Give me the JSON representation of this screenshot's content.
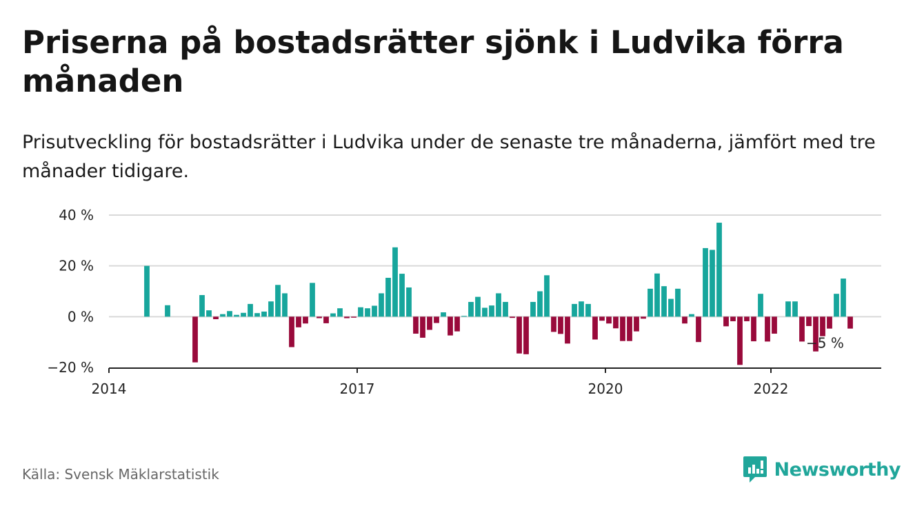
{
  "title": "Priserna på bostadsrätter sjönk i Ludvika förra månaden",
  "subtitle": "Prisutveckling för bostadsrätter i Ludvika under de senaste tre månaderna, jämfört med tre månader tidigare.",
  "source": "Källa: Svensk Mäklarstatistik",
  "brand": {
    "name": "Newsworthy",
    "logo_icon": "bar-chart-speech-bubble-icon",
    "color": "#20a69a"
  },
  "colors": {
    "positive": "#17a69c",
    "negative": "#990a3b",
    "grid": "#d9d9d9",
    "axis": "#222222"
  },
  "chart_data": {
    "type": "bar",
    "title": "",
    "xlabel": "",
    "ylabel": "",
    "ylim": [
      -20,
      40
    ],
    "y_ticks": [
      {
        "value": -20,
        "label": "−20 %"
      },
      {
        "value": 0,
        "label": "0 %"
      },
      {
        "value": 20,
        "label": "20 %"
      },
      {
        "value": 40,
        "label": "40 %"
      }
    ],
    "x_ticks": [
      {
        "value": "2014-01",
        "label": "2014"
      },
      {
        "value": "2017-01",
        "label": "2017"
      },
      {
        "value": "2020-01",
        "label": "2020"
      },
      {
        "value": "2022-01",
        "label": "2022"
      }
    ],
    "x_start": "2014-01",
    "x_end": "2023-05",
    "grid": true,
    "legend": "none",
    "annotation": {
      "text": "−5 %",
      "x": "2022-10"
    },
    "series": [
      {
        "points": [
          [
            "2014-06",
            20
          ],
          [
            "2014-09",
            4.5
          ],
          [
            "2015-01",
            -18
          ],
          [
            "2015-02",
            8.5
          ],
          [
            "2015-03",
            2.5
          ],
          [
            "2015-04",
            -1
          ],
          [
            "2015-05",
            1
          ],
          [
            "2015-06",
            2.2
          ],
          [
            "2015-07",
            0.7
          ],
          [
            "2015-08",
            1.5
          ],
          [
            "2015-09",
            5
          ],
          [
            "2015-10",
            1.4
          ],
          [
            "2015-11",
            2
          ],
          [
            "2015-12",
            6
          ],
          [
            "2016-01",
            12.5
          ],
          [
            "2016-02",
            9.2
          ],
          [
            "2016-03",
            -12
          ],
          [
            "2016-04",
            -4.2
          ],
          [
            "2016-05",
            -2.7
          ],
          [
            "2016-06",
            13.3
          ],
          [
            "2016-07",
            -0.6
          ],
          [
            "2016-08",
            -2.6
          ],
          [
            "2016-09",
            1.3
          ],
          [
            "2016-10",
            3.3
          ],
          [
            "2016-11",
            -0.6
          ],
          [
            "2016-12",
            -0.4
          ],
          [
            "2017-01",
            3.7
          ],
          [
            "2017-02",
            3.3
          ],
          [
            "2017-03",
            4.3
          ],
          [
            "2017-04",
            9.2
          ],
          [
            "2017-05",
            15.3
          ],
          [
            "2017-06",
            27.3
          ],
          [
            "2017-07",
            16.9
          ],
          [
            "2017-08",
            11.5
          ],
          [
            "2017-09",
            -6.7
          ],
          [
            "2017-10",
            -8.3
          ],
          [
            "2017-11",
            -5.2
          ],
          [
            "2017-12",
            -2.5
          ],
          [
            "2018-01",
            1.7
          ],
          [
            "2018-02",
            -7.4
          ],
          [
            "2018-03",
            -5.8
          ],
          [
            "2018-04",
            0.3
          ],
          [
            "2018-05",
            5.8
          ],
          [
            "2018-06",
            7.8
          ],
          [
            "2018-07",
            3.5
          ],
          [
            "2018-08",
            4.4
          ],
          [
            "2018-09",
            9.2
          ],
          [
            "2018-10",
            5.8
          ],
          [
            "2018-11",
            -0.5
          ],
          [
            "2018-12",
            -14.5
          ],
          [
            "2019-01",
            -14.8
          ],
          [
            "2019-02",
            5.8
          ],
          [
            "2019-03",
            10
          ],
          [
            "2019-04",
            16.3
          ],
          [
            "2019-05",
            -6
          ],
          [
            "2019-06",
            -6.8
          ],
          [
            "2019-07",
            -10.6
          ],
          [
            "2019-08",
            5
          ],
          [
            "2019-09",
            6
          ],
          [
            "2019-10",
            5
          ],
          [
            "2019-11",
            -9
          ],
          [
            "2019-12",
            -1.6
          ],
          [
            "2020-01",
            -2.7
          ],
          [
            "2020-02",
            -4.6
          ],
          [
            "2020-03",
            -9.6
          ],
          [
            "2020-04",
            -9.6
          ],
          [
            "2020-05",
            -5.8
          ],
          [
            "2020-06",
            -0.8
          ],
          [
            "2020-07",
            11
          ],
          [
            "2020-08",
            17
          ],
          [
            "2020-09",
            12
          ],
          [
            "2020-10",
            7
          ],
          [
            "2020-11",
            11
          ],
          [
            "2020-12",
            -2.7
          ],
          [
            "2021-01",
            1
          ],
          [
            "2021-02",
            -10
          ],
          [
            "2021-03",
            27
          ],
          [
            "2021-04",
            26.3
          ],
          [
            "2021-05",
            37
          ],
          [
            "2021-06",
            -3.8
          ],
          [
            "2021-07",
            -1.8
          ],
          [
            "2021-08",
            -19
          ],
          [
            "2021-09",
            -1.8
          ],
          [
            "2021-10",
            -9.7
          ],
          [
            "2021-11",
            9
          ],
          [
            "2021-12",
            -9.8
          ],
          [
            "2022-01",
            -6.7
          ],
          [
            "2022-03",
            6
          ],
          [
            "2022-04",
            6
          ],
          [
            "2022-05",
            -9.8
          ],
          [
            "2022-06",
            -3.7
          ],
          [
            "2022-07",
            -13.7
          ],
          [
            "2022-08",
            -7.7
          ],
          [
            "2022-09",
            -4.7
          ],
          [
            "2022-10",
            9
          ],
          [
            "2022-11",
            15
          ],
          [
            "2022-12",
            -4.7
          ]
        ]
      }
    ]
  }
}
